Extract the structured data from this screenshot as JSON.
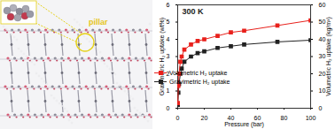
{
  "chart_data": {
    "type": "line",
    "title": "300 K",
    "x_label": "Pressure (bar)",
    "y_label": "Gravimetric H₂ uptake (wt%)",
    "y2_label": "Volumetric H₂ uptake (kg/m³)",
    "x": [
      0.1,
      0.5,
      1,
      2,
      3,
      5,
      10,
      15,
      20,
      30,
      40,
      50,
      75,
      100
    ],
    "series": [
      {
        "name": "Volumetric H₂ uptake",
        "color": "#e8211c",
        "marker": "square",
        "line_style": "solid",
        "axis": "y2",
        "values": [
          3,
          13,
          20,
          27,
          30,
          34,
          37,
          39,
          40,
          42,
          44,
          45,
          48,
          51
        ]
      },
      {
        "name": "Gravimetric H₂ uptake",
        "color": "#222222",
        "marker": "square",
        "line_style": "solid",
        "values": [
          0.2,
          0.9,
          1.4,
          2.0,
          2.3,
          2.7,
          3.0,
          3.2,
          3.3,
          3.5,
          3.6,
          3.7,
          3.85,
          3.95
        ]
      }
    ],
    "xlim": [
      0,
      100
    ],
    "xticks": [
      0,
      20,
      40,
      60,
      80,
      100
    ],
    "ylim": [
      0,
      6
    ],
    "yticks": [
      0,
      1,
      2,
      3,
      4,
      5,
      6
    ],
    "y2lim": [
      0,
      60
    ],
    "y2ticks": [
      0,
      10,
      20,
      30,
      40,
      50,
      60
    ],
    "legend": "center right",
    "grid": false
  },
  "figure": {
    "inset_label": "pillar"
  }
}
